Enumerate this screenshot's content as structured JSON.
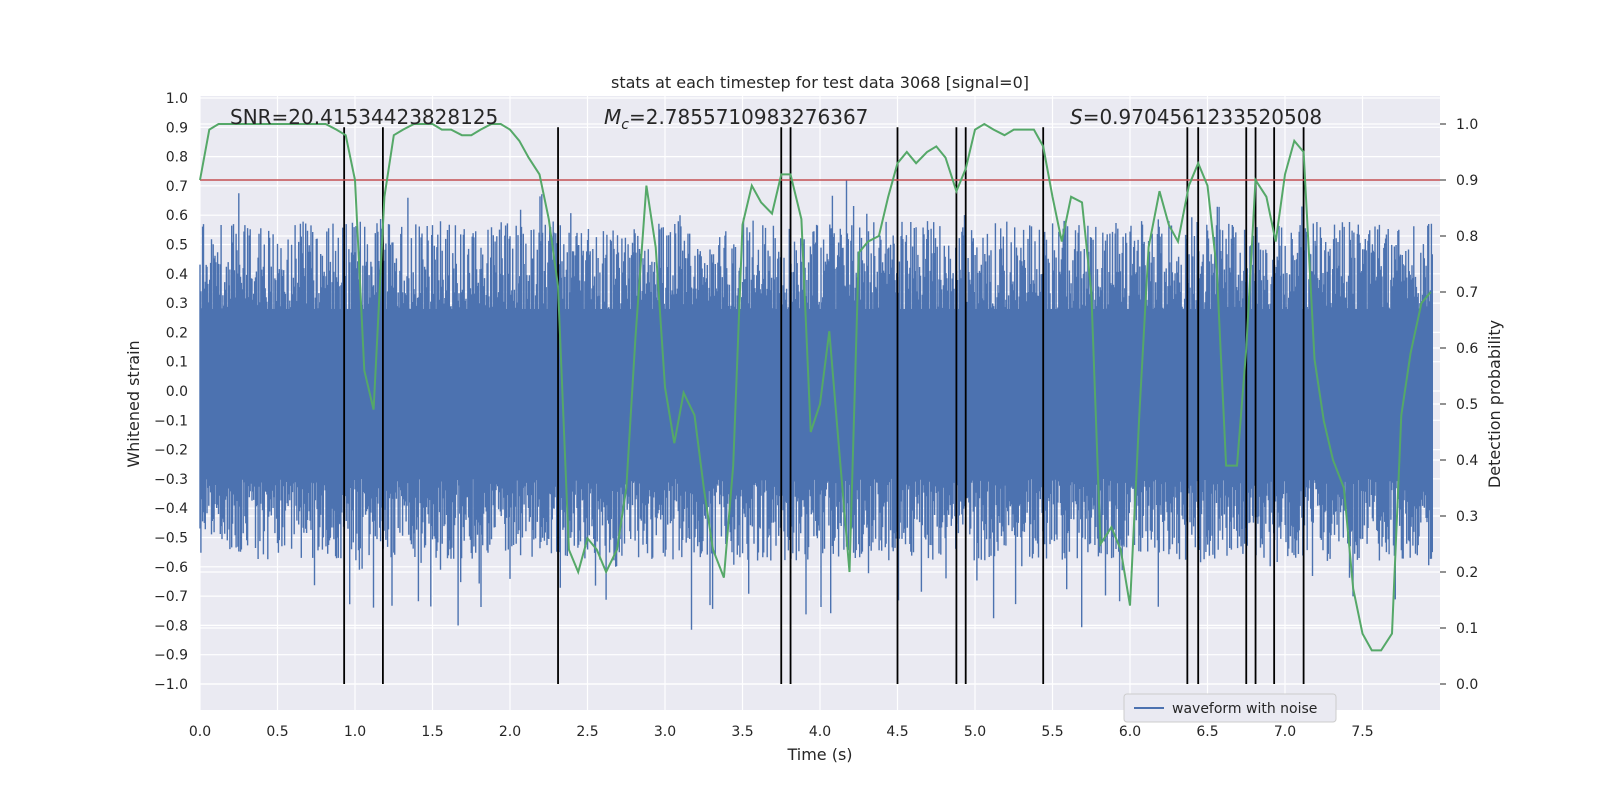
{
  "chart_data": {
    "type": "line",
    "title": "stats at each timestep for test data 3068 [signal=0]",
    "xlabel": "Time (s)",
    "ylabel_left": "Whitened strain",
    "ylabel_right": "Detection probability",
    "xlim": [
      0,
      8
    ],
    "ylim_left": [
      -1.0,
      1.0
    ],
    "ylim_right": [
      0.0,
      1.0
    ],
    "x_ticks": [
      "0.0",
      "0.5",
      "1.0",
      "1.5",
      "2.0",
      "2.5",
      "3.0",
      "3.5",
      "4.0",
      "4.5",
      "5.0",
      "5.5",
      "6.0",
      "6.5",
      "7.0",
      "7.5"
    ],
    "y_left_ticks": [
      "−1.0",
      "−0.9",
      "−0.8",
      "−0.7",
      "−0.6",
      "−0.5",
      "−0.4",
      "−0.3",
      "−0.2",
      "−0.1",
      "0.0",
      "0.1",
      "0.2",
      "0.3",
      "0.4",
      "0.5",
      "0.6",
      "0.7",
      "0.8",
      "0.9",
      "1.0"
    ],
    "y_right_ticks": [
      "0.0",
      "0.1",
      "0.2",
      "0.3",
      "0.4",
      "0.5",
      "0.6",
      "0.7",
      "0.8",
      "0.9",
      "1.0"
    ],
    "annotations": {
      "snr": "SNR=20.41534423828125",
      "mc_symbol": "M",
      "mc_sub": "c",
      "mc_value": "=2.7855710983276367",
      "s_symbol": "S",
      "s_value": "=0.9704561233520508"
    },
    "legend": {
      "label": "waveform with noise",
      "position": "lower-right"
    },
    "colors": {
      "waveform": "#4c72b0",
      "probability": "#55a868",
      "threshold": "#c44e52",
      "markers": "#000000",
      "background": "#eaeaf2"
    },
    "threshold": 0.9,
    "marker_times": [
      0.93,
      1.18,
      2.31,
      3.75,
      3.81,
      4.5,
      4.88,
      4.94,
      5.44,
      6.37,
      6.44,
      6.75,
      6.81,
      6.93,
      7.12
    ],
    "probability_series": {
      "name": "Detection probability",
      "x": [
        0.0,
        0.06,
        0.12,
        0.19,
        0.25,
        0.31,
        0.38,
        0.44,
        0.5,
        0.56,
        0.62,
        0.69,
        0.75,
        0.81,
        0.88,
        0.94,
        1.0,
        1.06,
        1.12,
        1.19,
        1.25,
        1.31,
        1.38,
        1.44,
        1.5,
        1.56,
        1.62,
        1.69,
        1.75,
        1.81,
        1.88,
        1.94,
        2.0,
        2.06,
        2.12,
        2.19,
        2.25,
        2.31,
        2.38,
        2.44,
        2.5,
        2.56,
        2.62,
        2.69,
        2.75,
        2.81,
        2.88,
        2.94,
        3.0,
        3.06,
        3.12,
        3.19,
        3.25,
        3.31,
        3.38,
        3.44,
        3.5,
        3.56,
        3.62,
        3.69,
        3.75,
        3.81,
        3.88,
        3.94,
        4.0,
        4.06,
        4.12,
        4.19,
        4.25,
        4.31,
        4.38,
        4.44,
        4.5,
        4.56,
        4.62,
        4.69,
        4.75,
        4.81,
        4.88,
        4.94,
        5.0,
        5.06,
        5.12,
        5.19,
        5.25,
        5.31,
        5.38,
        5.44,
        5.5,
        5.56,
        5.62,
        5.69,
        5.75,
        5.81,
        5.88,
        5.94,
        6.0,
        6.06,
        6.12,
        6.19,
        6.25,
        6.31,
        6.38,
        6.44,
        6.5,
        6.56,
        6.62,
        6.69,
        6.75,
        6.81,
        6.88,
        6.94,
        7.0,
        7.06,
        7.12,
        7.19,
        7.25,
        7.31,
        7.38,
        7.44,
        7.5,
        7.56,
        7.62,
        7.69,
        7.75,
        7.81,
        7.88,
        7.94
      ],
      "y": [
        0.9,
        0.99,
        1.0,
        1.0,
        1.0,
        1.0,
        1.0,
        1.0,
        1.0,
        1.0,
        1.0,
        1.0,
        1.0,
        1.0,
        0.99,
        0.98,
        0.9,
        0.56,
        0.49,
        0.87,
        0.98,
        0.99,
        1.0,
        1.0,
        1.0,
        0.99,
        0.99,
        0.98,
        0.98,
        0.99,
        1.0,
        1.0,
        0.99,
        0.97,
        0.94,
        0.91,
        0.83,
        0.71,
        0.24,
        0.2,
        0.26,
        0.24,
        0.2,
        0.24,
        0.35,
        0.62,
        0.89,
        0.78,
        0.53,
        0.43,
        0.52,
        0.48,
        0.35,
        0.24,
        0.19,
        0.39,
        0.82,
        0.89,
        0.86,
        0.84,
        0.91,
        0.91,
        0.83,
        0.45,
        0.5,
        0.63,
        0.43,
        0.2,
        0.77,
        0.79,
        0.8,
        0.87,
        0.93,
        0.95,
        0.93,
        0.95,
        0.96,
        0.94,
        0.88,
        0.92,
        0.99,
        1.0,
        0.99,
        0.98,
        0.99,
        0.99,
        0.99,
        0.96,
        0.87,
        0.79,
        0.87,
        0.86,
        0.7,
        0.25,
        0.28,
        0.24,
        0.14,
        0.48,
        0.78,
        0.88,
        0.82,
        0.79,
        0.89,
        0.93,
        0.89,
        0.74,
        0.39,
        0.39,
        0.6,
        0.9,
        0.87,
        0.79,
        0.91,
        0.97,
        0.95,
        0.58,
        0.47,
        0.4,
        0.35,
        0.17,
        0.09,
        0.06,
        0.06,
        0.09,
        0.48,
        0.59,
        0.68,
        0.7
      ]
    }
  }
}
